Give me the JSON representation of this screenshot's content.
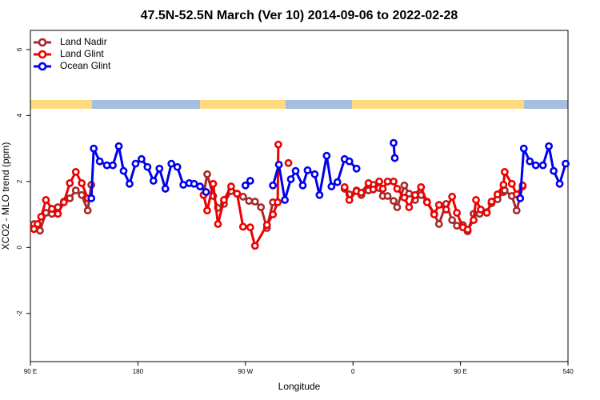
{
  "chart_data": {
    "type": "line",
    "title": "47.5N-52.5N March (Ver 10)   2014-09-06 to 2022-02-28",
    "xlabel": "Longitude",
    "ylabel": "XCO2 - MLO trend (ppm)",
    "xlim": [
      90,
      540
    ],
    "ylim": [
      -3.46,
      6.58
    ],
    "xticks": [
      {
        "value": 90,
        "label": "90 E"
      },
      180,
      {
        "value": 270,
        "label": "90 W"
      },
      {
        "value": 360,
        "label": "0"
      },
      {
        "value": 450,
        "label": "90 E"
      },
      540
    ],
    "yticks": [
      -2,
      0,
      2,
      4,
      6
    ],
    "legend": "upper left",
    "series": [
      {
        "name": "Land Nadir",
        "color": "#a52a2a",
        "x": [
          93,
          98,
          103,
          108,
          113,
          118,
          123,
          128,
          133,
          138,
          141,
          null,
          235,
          238,
          243,
          247,
          252,
          258,
          263,
          268,
          273,
          278,
          283,
          288,
          293,
          null,
          353,
          357,
          363,
          367,
          373,
          377,
          382,
          385,
          389,
          394,
          397,
          403,
          407,
          412,
          417,
          422,
          428,
          432,
          438,
          443,
          447,
          452,
          456,
          461,
          466,
          472,
          476,
          481,
          486,
          487,
          493,
          497,
          502
        ],
        "values": [
          0.71,
          0.51,
          1.05,
          1.02,
          1.22,
          1.39,
          1.49,
          1.73,
          1.59,
          1.12,
          1.9,
          null,
          1.59,
          2.22,
          1.56,
          1.2,
          1.32,
          1.71,
          1.63,
          1.54,
          1.41,
          1.39,
          1.22,
          0.59,
          1.37,
          null,
          1.78,
          1.61,
          1.73,
          1.59,
          1.73,
          1.9,
          1.8,
          1.56,
          1.56,
          1.41,
          1.22,
          1.88,
          1.63,
          1.44,
          1.59,
          1.39,
          1.02,
          0.71,
          1.32,
          0.83,
          0.66,
          0.68,
          0.49,
          1.02,
          1.02,
          1.07,
          1.34,
          1.46,
          1.68,
          1.73,
          1.56,
          1.12,
          1.85
        ]
      },
      {
        "name": "Land Glint",
        "color": "#ee0000",
        "x": [
          93,
          96,
          99,
          103,
          108,
          113,
          118,
          123,
          128,
          133,
          138,
          null,
          235,
          238,
          243,
          247,
          252,
          258,
          263,
          268,
          274,
          278,
          288,
          293,
          297,
          297.5,
          null,
          306,
          null,
          353,
          357,
          363,
          367,
          373,
          377,
          382,
          385,
          389,
          394,
          397,
          403,
          407,
          412,
          417,
          422,
          428,
          432,
          438,
          443,
          447,
          452,
          456,
          461,
          463,
          467,
          472,
          476,
          481,
          486,
          487,
          493,
          497,
          502
        ],
        "values": [
          0.56,
          0.71,
          0.93,
          1.44,
          1.17,
          1.02,
          1.37,
          1.95,
          2.29,
          1.95,
          1.49,
          null,
          1.59,
          1.12,
          1.93,
          0.71,
          1.44,
          1.85,
          1.63,
          0.63,
          0.61,
          0.05,
          0.68,
          1.0,
          1.37,
          3.12,
          null,
          2.56,
          null,
          1.83,
          1.44,
          1.71,
          1.66,
          1.95,
          1.76,
          2.0,
          1.78,
          2.0,
          2.0,
          1.78,
          1.51,
          1.22,
          1.59,
          1.83,
          1.37,
          1.0,
          1.29,
          1.15,
          1.54,
          1.05,
          0.61,
          0.54,
          0.83,
          1.44,
          1.15,
          1.05,
          1.39,
          1.61,
          1.9,
          2.29,
          1.93,
          1.61,
          1.88
        ]
      },
      {
        "name": "Ocean Glint",
        "color": "#0000ee",
        "x": [
          141,
          143,
          148,
          154,
          159,
          164,
          168,
          173,
          178,
          183,
          188,
          193,
          198,
          203,
          208,
          213,
          218,
          223,
          227,
          232,
          237,
          null,
          270,
          274,
          null,
          293,
          298,
          303,
          308,
          312,
          318,
          322,
          328,
          332,
          338,
          342,
          347,
          353,
          357,
          363,
          null,
          394,
          395,
          null,
          500,
          503,
          508,
          513,
          519,
          524,
          528,
          533,
          538
        ],
        "values": [
          1.49,
          3.0,
          2.61,
          2.49,
          2.49,
          3.07,
          2.32,
          1.93,
          2.54,
          2.68,
          2.44,
          2.02,
          2.39,
          1.78,
          2.54,
          2.44,
          1.9,
          1.95,
          1.93,
          1.85,
          1.68,
          null,
          1.88,
          2.02,
          null,
          1.88,
          2.51,
          1.44,
          2.07,
          2.32,
          1.88,
          2.34,
          2.22,
          1.59,
          2.78,
          1.85,
          1.98,
          2.68,
          2.61,
          2.39,
          null,
          3.17,
          2.71,
          null,
          1.49,
          3.0,
          2.61,
          2.49,
          2.49,
          3.07,
          2.32,
          1.93,
          2.54
        ]
      }
    ]
  }
}
